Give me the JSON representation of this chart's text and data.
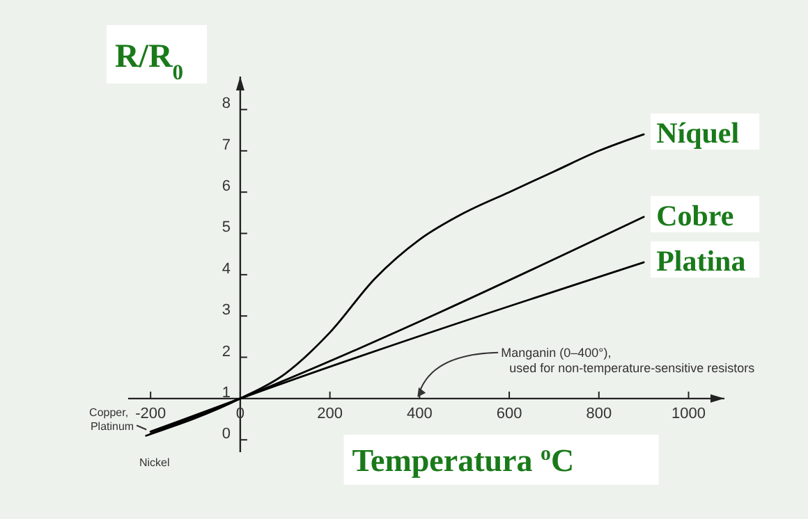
{
  "chart_data": {
    "type": "line",
    "ylabel": "R/R$_{0}$",
    "xlabel": "Temperatura $^{o}$C",
    "xlim": [
      -250,
      1080
    ],
    "ylim": [
      -0.3,
      8.8
    ],
    "xticks": [
      -200,
      0,
      200,
      400,
      600,
      800,
      1000
    ],
    "yticks": [
      0,
      1,
      2,
      3,
      4,
      5,
      6,
      7,
      8
    ],
    "grid": false,
    "legend": false,
    "marker": "none",
    "line_style": "solid",
    "series": [
      {
        "name": "Níquel",
        "color": "#000000",
        "x": [
          -210,
          0,
          100,
          200,
          300,
          400,
          500,
          600,
          700,
          800,
          900
        ],
        "values": [
          0.1,
          1,
          1.6,
          2.6,
          3.9,
          4.85,
          5.5,
          6.0,
          6.5,
          7.0,
          7.4
        ]
      },
      {
        "name": "Cobre",
        "color": "#000000",
        "x": [
          -200,
          0,
          900
        ],
        "values": [
          0.15,
          1,
          5.4
        ]
      },
      {
        "name": "Platina",
        "color": "#000000",
        "x": [
          -200,
          0,
          900
        ],
        "values": [
          0.2,
          1,
          4.3
        ]
      }
    ],
    "annotations": [
      "Manganin (0–400°), used for non-temperature-sensitive resistors",
      {
        "text": "Copper, Platinum",
        "x": -200,
        "y": 0.18
      },
      {
        "text": "Nickel",
        "x": -210,
        "y": 0.1
      }
    ]
  }
}
